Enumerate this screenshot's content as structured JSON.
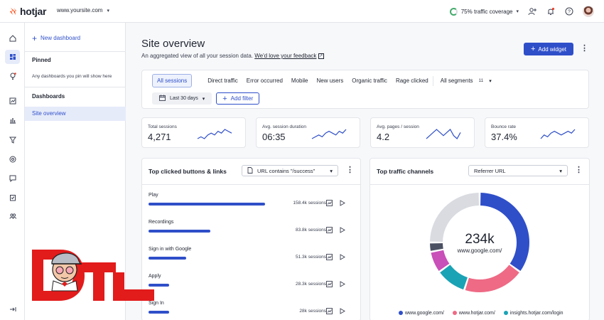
{
  "app": {
    "brand": "hotjar",
    "site": "www.yoursite.com",
    "coverage": "75% traffic coverage"
  },
  "sidebar": {
    "new_dashboard": "New dashboard",
    "pinned_heading": "Pinned",
    "pinned_note": "Any dashboards you pin will show here",
    "dashboards_heading": "Dashboards",
    "selected_item": "Site overview"
  },
  "page": {
    "title": "Site overview",
    "subtitle": "An aggregated view of all your session data.",
    "feedback_link": "We'd love your feedback",
    "add_widget": "Add widget"
  },
  "filters": {
    "segments": [
      "All sessions",
      "Direct traffic",
      "Error occurred",
      "Mobile",
      "New users",
      "Organic traffic",
      "Rage clicked"
    ],
    "all_segments_label": "All segments",
    "all_segments_count": "11",
    "date_range": "Last 30 days",
    "add_filter": "Add filter"
  },
  "metrics": [
    {
      "label": "Total sessions",
      "value": "4,271",
      "trend": [
        5,
        6,
        5,
        7,
        8,
        7,
        9,
        8,
        10,
        9,
        8
      ]
    },
    {
      "label": "Avg. session duration",
      "value": "06:35",
      "trend": [
        5,
        6,
        7,
        6,
        8,
        9,
        8,
        7,
        9,
        8,
        10
      ]
    },
    {
      "label": "Avg. pages / session",
      "value": "4.2",
      "trend": [
        6,
        7,
        8,
        9,
        8,
        7,
        8,
        9,
        7,
        6,
        8
      ]
    },
    {
      "label": "Bounce rate",
      "value": "37.4%",
      "trend": [
        5,
        7,
        6,
        8,
        9,
        8,
        7,
        8,
        9,
        8,
        10
      ]
    }
  ],
  "top_clicked": {
    "title": "Top clicked buttons & links",
    "filter": "URL contains \"/success\"",
    "rows": [
      {
        "name": "Play",
        "sessions": "158.4k sessions",
        "value": 158.4
      },
      {
        "name": "Recordings",
        "sessions": "83.8k sessions",
        "value": 83.8
      },
      {
        "name": "Sign in with Google",
        "sessions": "51.3k sessions",
        "value": 51.3
      },
      {
        "name": "Apply",
        "sessions": "28.3k sessions",
        "value": 28.3
      },
      {
        "name": "Sign In",
        "sessions": "28k sessions",
        "value": 28
      }
    ]
  },
  "traffic": {
    "title": "Top traffic channels",
    "select": "Referrer URL",
    "center_value": "234k",
    "center_label": "www.google.com/",
    "colors": {
      "google": "#2f4fc9",
      "hotjar": "#ee6a85",
      "insights": "#1aa3b5",
      "pink": "#c94fb9",
      "slate": "#4b5163",
      "other": "#d9dbe1"
    }
  },
  "chart_data": {
    "type": "pie",
    "title": "Top traffic channels",
    "categories": [
      "www.google.com/",
      "www.hotjar.com/",
      "insights.hotjar.com/login",
      "",
      "",
      ""
    ],
    "values": [
      35,
      20,
      10,
      7,
      3,
      25
    ],
    "legend": [
      "www.google.com/",
      "www.hotjar.com/",
      "insights.hotjar.com/login"
    ],
    "legend_position": "bottom"
  }
}
